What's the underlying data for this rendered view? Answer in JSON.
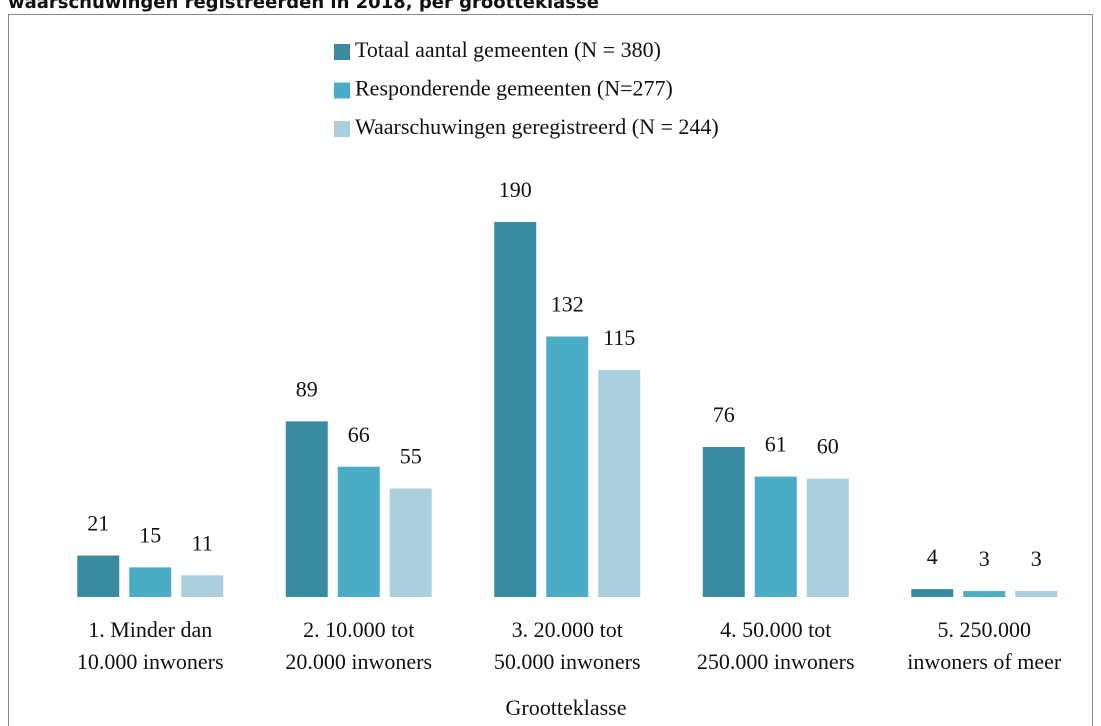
{
  "chart_data": {
    "type": "bar",
    "title": "waarschuwingen registreerden in 2018, per grootteklasse",
    "x_label": "Grootteklasse",
    "categories": [
      [
        "1. Minder dan",
        "10.000 inwoners"
      ],
      [
        "2. 10.000 tot",
        "20.000 inwoners"
      ],
      [
        "3. 20.000 tot",
        "50.000 inwoners"
      ],
      [
        "4. 50.000 tot",
        "250.000 inwoners"
      ],
      [
        "5. 250.000",
        "inwoners of meer"
      ]
    ],
    "series": [
      {
        "name": "Totaal aantal gemeenten (N = 380)",
        "color": "#3a8ba0",
        "values": [
          21,
          89,
          190,
          76,
          4
        ]
      },
      {
        "name": "Responderende gemeenten (N=277)",
        "color": "#4bacc6",
        "values": [
          15,
          66,
          132,
          61,
          3
        ]
      },
      {
        "name": "Waarschuwingen geregistreerd (N = 244)",
        "color": "#a9d0dc",
        "values": [
          11,
          55,
          115,
          60,
          3
        ]
      }
    ],
    "legend": "top"
  }
}
